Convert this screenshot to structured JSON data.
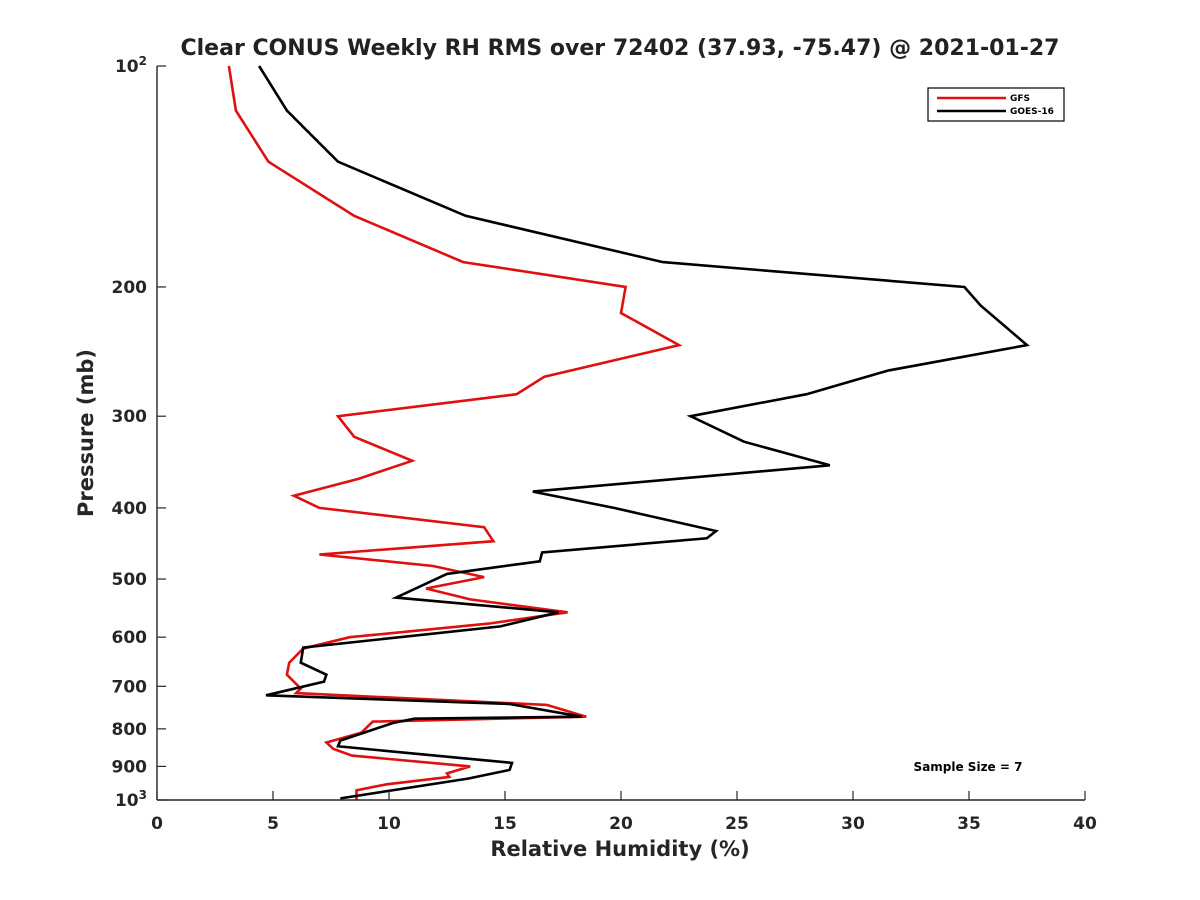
{
  "chart_data": {
    "type": "line",
    "title": "Clear CONUS Weekly RH RMS over 72402 (37.93, -75.47) @ 2021-01-27",
    "xlabel": "Relative Humidity (%)",
    "ylabel": "Pressure (mb)",
    "xlim": [
      0,
      40
    ],
    "ylim": [
      100,
      1000
    ],
    "y_scale": "log",
    "y_direction": "reverse",
    "x_ticks": [
      "0",
      "5",
      "10",
      "15",
      "20",
      "25",
      "30",
      "35",
      "40"
    ],
    "y_ticks": [
      {
        "value": 100,
        "base": "10",
        "exp": "2"
      },
      {
        "value": 200,
        "label": "200"
      },
      {
        "value": 300,
        "label": "300"
      },
      {
        "value": 400,
        "label": "400"
      },
      {
        "value": 500,
        "label": "500"
      },
      {
        "value": 600,
        "label": "600"
      },
      {
        "value": 700,
        "label": "700"
      },
      {
        "value": 800,
        "label": "800"
      },
      {
        "value": 900,
        "label": "900"
      },
      {
        "value": 1000,
        "base": "10",
        "exp": "3"
      }
    ],
    "legend": {
      "position": "top-right",
      "entries": [
        "GFS",
        "GOES-16"
      ]
    },
    "annotation": "Sample Size = 7",
    "series": [
      {
        "name": "GFS",
        "color": "#e01010",
        "points": [
          [
            3.1,
            100
          ],
          [
            3.4,
            115
          ],
          [
            4.8,
            135
          ],
          [
            8.5,
            160
          ],
          [
            13.2,
            185
          ],
          [
            20.2,
            200
          ],
          [
            20.0,
            217
          ],
          [
            22.5,
            240
          ],
          [
            16.7,
            265
          ],
          [
            15.5,
            280
          ],
          [
            7.8,
            300
          ],
          [
            8.5,
            320
          ],
          [
            11.0,
            345
          ],
          [
            8.7,
            365
          ],
          [
            5.9,
            385
          ],
          [
            7.0,
            400
          ],
          [
            14.1,
            425
          ],
          [
            14.5,
            444
          ],
          [
            7.0,
            463
          ],
          [
            11.9,
            480
          ],
          [
            14.1,
            497
          ],
          [
            11.6,
            515
          ],
          [
            13.5,
            533
          ],
          [
            17.7,
            555
          ],
          [
            14.3,
            575
          ],
          [
            8.3,
            600
          ],
          [
            6.3,
            622
          ],
          [
            5.7,
            650
          ],
          [
            5.6,
            675
          ],
          [
            6.2,
            705
          ],
          [
            6.0,
            715
          ],
          [
            16.8,
            742
          ],
          [
            18.5,
            770
          ],
          [
            9.3,
            782
          ],
          [
            8.8,
            810
          ],
          [
            7.3,
            835
          ],
          [
            7.6,
            852
          ],
          [
            8.4,
            870
          ],
          [
            13.5,
            900
          ],
          [
            12.5,
            920
          ],
          [
            12.6,
            930
          ],
          [
            9.9,
            952
          ],
          [
            8.6,
            970
          ],
          [
            8.6,
            1000
          ]
        ]
      },
      {
        "name": "GOES-16",
        "color": "#000000",
        "points": [
          [
            4.4,
            100
          ],
          [
            5.6,
            115
          ],
          [
            7.8,
            135
          ],
          [
            13.3,
            160
          ],
          [
            21.8,
            185
          ],
          [
            34.8,
            200
          ],
          [
            35.5,
            212
          ],
          [
            37.5,
            240
          ],
          [
            31.5,
            260
          ],
          [
            28.0,
            280
          ],
          [
            23.0,
            300
          ],
          [
            25.3,
            325
          ],
          [
            29.0,
            350
          ],
          [
            16.2,
            380
          ],
          [
            19.7,
            400
          ],
          [
            24.1,
            430
          ],
          [
            23.7,
            440
          ],
          [
            16.6,
            460
          ],
          [
            16.5,
            473
          ],
          [
            12.5,
            492
          ],
          [
            10.3,
            530
          ],
          [
            17.3,
            555
          ],
          [
            14.8,
            580
          ],
          [
            6.3,
            620
          ],
          [
            6.2,
            650
          ],
          [
            7.3,
            675
          ],
          [
            7.2,
            690
          ],
          [
            4.7,
            720
          ],
          [
            15.2,
            740
          ],
          [
            18.3,
            770
          ],
          [
            11.1,
            775
          ],
          [
            10.2,
            785
          ],
          [
            7.9,
            830
          ],
          [
            7.8,
            845
          ],
          [
            15.3,
            890
          ],
          [
            15.2,
            910
          ],
          [
            13.4,
            935
          ],
          [
            7.9,
            995
          ]
        ]
      }
    ]
  }
}
